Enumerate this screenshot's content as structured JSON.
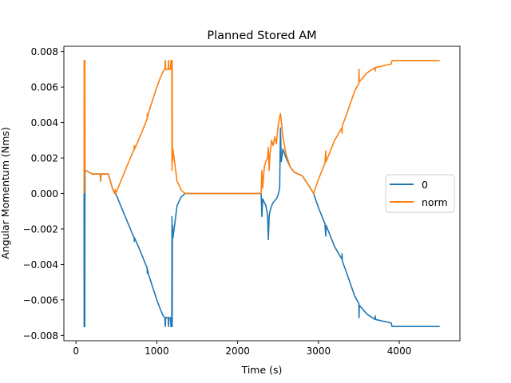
{
  "chart_data": {
    "type": "line",
    "title": "Planned Stored AM",
    "xlabel": "Time (s)",
    "ylabel": "Angular Momentum (Nms)",
    "xlim": [
      -150,
      4750
    ],
    "ylim": [
      -0.0083,
      0.0083
    ],
    "xticks": [
      0,
      1000,
      2000,
      3000,
      4000
    ],
    "xtick_labels": [
      "0",
      "1000",
      "2000",
      "3000",
      "4000"
    ],
    "yticks": [
      -0.008,
      -0.006,
      -0.004,
      -0.002,
      0.0,
      0.002,
      0.004,
      0.006,
      0.008
    ],
    "ytick_labels": [
      "−0.008",
      "−0.006",
      "−0.004",
      "−0.002",
      "0.000",
      "0.002",
      "0.004",
      "0.006",
      "0.008"
    ],
    "grid": false,
    "legend_position": "right",
    "series": [
      {
        "name": "0",
        "color": "#1f77b4",
        "points": [
          [
            100,
            0
          ],
          [
            101,
            -0.0075
          ],
          [
            103,
            0.0001
          ],
          [
            105,
            -0.0075
          ],
          [
            107,
            0.0027
          ],
          [
            109,
            -0.0075
          ],
          [
            111,
            0.0013
          ],
          [
            120,
            0.0013
          ],
          [
            200,
            0.0011
          ],
          [
            250,
            0.0011
          ],
          [
            300,
            0.0011
          ],
          [
            305,
            0.0007
          ],
          [
            310,
            0.0011
          ],
          [
            400,
            0.0011
          ],
          [
            450,
            0.0003
          ],
          [
            480,
            0.0
          ],
          [
            485,
            0.0002
          ],
          [
            490,
            0.0
          ],
          [
            500,
            -0.0001
          ],
          [
            600,
            -0.0012
          ],
          [
            700,
            -0.0023
          ],
          [
            720,
            -0.0025
          ],
          [
            722,
            -0.0027
          ],
          [
            725,
            -0.0025
          ],
          [
            800,
            -0.0033
          ],
          [
            880,
            -0.0042
          ],
          [
            882,
            -0.0045
          ],
          [
            885,
            -0.0043
          ],
          [
            900,
            -0.0046
          ],
          [
            1000,
            -0.006
          ],
          [
            1050,
            -0.0066
          ],
          [
            1080,
            -0.0069
          ],
          [
            1100,
            -0.007
          ],
          [
            1105,
            -0.0075
          ],
          [
            1110,
            -0.007
          ],
          [
            1140,
            -0.007
          ],
          [
            1145,
            -0.0075
          ],
          [
            1150,
            -0.007
          ],
          [
            1170,
            -0.007
          ],
          [
            1175,
            -0.0075
          ],
          [
            1185,
            -0.0075
          ],
          [
            1188,
            -0.0013
          ],
          [
            1190,
            -0.0075
          ],
          [
            1193,
            -0.0018
          ],
          [
            1200,
            -0.0025
          ],
          [
            1250,
            -0.0007
          ],
          [
            1300,
            -0.0002
          ],
          [
            1350,
            0.0
          ],
          [
            1500,
            0.0
          ],
          [
            1700,
            0.0
          ],
          [
            1900,
            0.0
          ],
          [
            2100,
            0.0
          ],
          [
            2290,
            0.0
          ],
          [
            2300,
            -0.0013
          ],
          [
            2310,
            -0.0003
          ],
          [
            2330,
            -0.0005
          ],
          [
            2350,
            -0.0007
          ],
          [
            2370,
            -0.0012
          ],
          [
            2380,
            -0.0026
          ],
          [
            2390,
            -0.0013
          ],
          [
            2400,
            -0.001
          ],
          [
            2420,
            -0.0007
          ],
          [
            2440,
            -0.0005
          ],
          [
            2460,
            -0.0004
          ],
          [
            2480,
            -0.0003
          ],
          [
            2500,
            -0.0001
          ],
          [
            2520,
            0.0003
          ],
          [
            2530,
            0.0037
          ],
          [
            2540,
            0.0018
          ],
          [
            2560,
            0.0025
          ],
          [
            2600,
            0.002
          ],
          [
            2650,
            0.0015
          ],
          [
            2700,
            0.0012
          ],
          [
            2800,
            0.001
          ],
          [
            2900,
            0.0003
          ],
          [
            2940,
            0.0
          ],
          [
            3000,
            -0.0008
          ],
          [
            3080,
            -0.0017
          ],
          [
            3090,
            -0.0024
          ],
          [
            3095,
            -0.0018
          ],
          [
            3200,
            -0.003
          ],
          [
            3290,
            -0.0037
          ],
          [
            3292,
            -0.0034
          ],
          [
            3295,
            -0.0038
          ],
          [
            3350,
            -0.0045
          ],
          [
            3450,
            -0.0058
          ],
          [
            3500,
            -0.0062
          ],
          [
            3502,
            -0.007
          ],
          [
            3505,
            -0.0063
          ],
          [
            3600,
            -0.0068
          ],
          [
            3700,
            -0.0071
          ],
          [
            3702,
            -0.0069
          ],
          [
            3705,
            -0.0071
          ],
          [
            3800,
            -0.0072
          ],
          [
            3900,
            -0.0073
          ],
          [
            3910,
            -0.0075
          ],
          [
            4500,
            -0.0075
          ]
        ]
      },
      {
        "name": "norm",
        "color": "#ff7f0e",
        "points": [
          [
            100,
            0
          ],
          [
            101,
            0.0075
          ],
          [
            103,
            0.0001
          ],
          [
            105,
            0.0075
          ],
          [
            107,
            0.0027
          ],
          [
            109,
            0.0075
          ],
          [
            111,
            0.0013
          ],
          [
            120,
            0.0013
          ],
          [
            200,
            0.0011
          ],
          [
            250,
            0.0011
          ],
          [
            300,
            0.0011
          ],
          [
            305,
            0.0007
          ],
          [
            310,
            0.0011
          ],
          [
            400,
            0.0011
          ],
          [
            450,
            0.0003
          ],
          [
            480,
            0.0
          ],
          [
            485,
            0.0002
          ],
          [
            490,
            0.0
          ],
          [
            500,
            0.0001
          ],
          [
            600,
            0.0012
          ],
          [
            700,
            0.0023
          ],
          [
            720,
            0.0025
          ],
          [
            722,
            0.0027
          ],
          [
            725,
            0.0025
          ],
          [
            800,
            0.0033
          ],
          [
            880,
            0.0042
          ],
          [
            882,
            0.0045
          ],
          [
            885,
            0.0043
          ],
          [
            900,
            0.0046
          ],
          [
            1000,
            0.006
          ],
          [
            1050,
            0.0066
          ],
          [
            1080,
            0.0069
          ],
          [
            1100,
            0.007
          ],
          [
            1105,
            0.0075
          ],
          [
            1110,
            0.007
          ],
          [
            1140,
            0.007
          ],
          [
            1145,
            0.0075
          ],
          [
            1150,
            0.007
          ],
          [
            1170,
            0.007
          ],
          [
            1175,
            0.0075
          ],
          [
            1185,
            0.0075
          ],
          [
            1188,
            0.0013
          ],
          [
            1190,
            0.0075
          ],
          [
            1193,
            0.0018
          ],
          [
            1200,
            0.0025
          ],
          [
            1250,
            0.0007
          ],
          [
            1300,
            0.0002
          ],
          [
            1350,
            0.0
          ],
          [
            1500,
            0.0
          ],
          [
            1700,
            0.0
          ],
          [
            1900,
            0.0
          ],
          [
            2100,
            0.0
          ],
          [
            2290,
            0.0
          ],
          [
            2300,
            0.0013
          ],
          [
            2310,
            0.0003
          ],
          [
            2330,
            0.0015
          ],
          [
            2350,
            0.0018
          ],
          [
            2370,
            0.002
          ],
          [
            2380,
            0.0026
          ],
          [
            2390,
            0.0013
          ],
          [
            2400,
            0.0022
          ],
          [
            2420,
            0.003
          ],
          [
            2440,
            0.0027
          ],
          [
            2460,
            0.0032
          ],
          [
            2480,
            0.0028
          ],
          [
            2500,
            0.0038
          ],
          [
            2520,
            0.0043
          ],
          [
            2530,
            0.0045
          ],
          [
            2540,
            0.0041
          ],
          [
            2560,
            0.0032
          ],
          [
            2600,
            0.0022
          ],
          [
            2650,
            0.0015
          ],
          [
            2700,
            0.0012
          ],
          [
            2800,
            0.001
          ],
          [
            2900,
            0.0003
          ],
          [
            2940,
            0.0
          ],
          [
            3000,
            0.0008
          ],
          [
            3080,
            0.0017
          ],
          [
            3090,
            0.0024
          ],
          [
            3095,
            0.0018
          ],
          [
            3200,
            0.003
          ],
          [
            3290,
            0.0037
          ],
          [
            3292,
            0.0034
          ],
          [
            3295,
            0.0038
          ],
          [
            3350,
            0.0045
          ],
          [
            3450,
            0.0058
          ],
          [
            3500,
            0.0062
          ],
          [
            3502,
            0.007
          ],
          [
            3505,
            0.0063
          ],
          [
            3600,
            0.0068
          ],
          [
            3700,
            0.0071
          ],
          [
            3702,
            0.0069
          ],
          [
            3705,
            0.0071
          ],
          [
            3800,
            0.0072
          ],
          [
            3900,
            0.0073
          ],
          [
            3910,
            0.0075
          ],
          [
            4500,
            0.0075
          ]
        ]
      }
    ]
  }
}
